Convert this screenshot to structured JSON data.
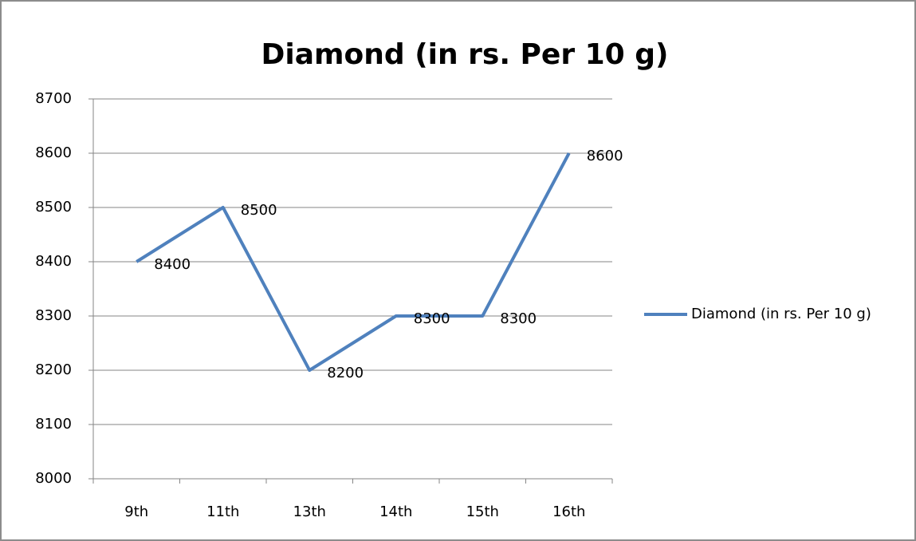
{
  "chart_data": {
    "type": "line",
    "title": "Diamond (in rs. Per 10 g)",
    "categories": [
      "9th",
      "11th",
      "13th",
      "14th",
      "15th",
      "16th"
    ],
    "series": [
      {
        "name": "Diamond (in rs. Per 10 g)",
        "color": "#4f81bd",
        "values": [
          8400,
          8500,
          8200,
          8300,
          8300,
          8600
        ]
      }
    ],
    "ylim": [
      8000,
      8700
    ],
    "yticks": [
      8000,
      8100,
      8200,
      8300,
      8400,
      8500,
      8600,
      8700
    ],
    "grid": true,
    "legend": "right",
    "data_labels": true
  }
}
